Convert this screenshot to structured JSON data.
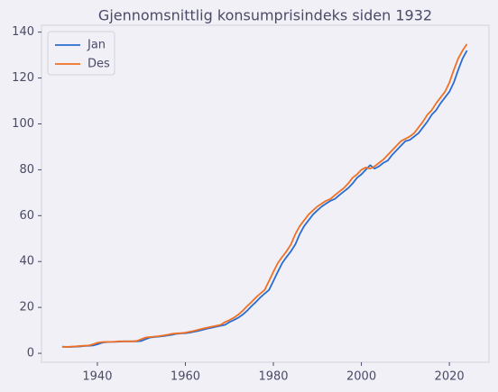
{
  "chart_data": {
    "type": "line",
    "title": "Gjennomsnittlig konsumprisindeks siden 1932",
    "x": [
      1932,
      1933,
      1934,
      1935,
      1936,
      1937,
      1938,
      1939,
      1940,
      1941,
      1942,
      1943,
      1944,
      1945,
      1946,
      1947,
      1948,
      1949,
      1950,
      1951,
      1952,
      1953,
      1954,
      1955,
      1956,
      1957,
      1958,
      1959,
      1960,
      1961,
      1962,
      1963,
      1964,
      1965,
      1966,
      1967,
      1968,
      1969,
      1970,
      1971,
      1972,
      1973,
      1974,
      1975,
      1976,
      1977,
      1978,
      1979,
      1980,
      1981,
      1982,
      1983,
      1984,
      1985,
      1986,
      1987,
      1988,
      1989,
      1990,
      1991,
      1992,
      1993,
      1994,
      1995,
      1996,
      1997,
      1998,
      1999,
      2000,
      2001,
      2002,
      2003,
      2004,
      2005,
      2006,
      2007,
      2008,
      2009,
      2010,
      2011,
      2012,
      2013,
      2014,
      2015,
      2016,
      2017,
      2018,
      2019,
      2020,
      2021,
      2022,
      2023,
      2024
    ],
    "series": [
      {
        "name": "Jan",
        "color": "#2b6cd0",
        "values": [
          2.9,
          2.8,
          2.8,
          2.9,
          3.0,
          3.2,
          3.3,
          3.4,
          3.9,
          4.6,
          4.9,
          5.0,
          5.0,
          5.1,
          5.2,
          5.2,
          5.2,
          5.2,
          5.4,
          6.2,
          6.9,
          7.1,
          7.3,
          7.5,
          7.8,
          8.1,
          8.5,
          8.7,
          8.8,
          9.0,
          9.4,
          9.8,
          10.3,
          10.8,
          11.2,
          11.6,
          12.0,
          12.4,
          13.6,
          14.5,
          15.5,
          16.8,
          18.5,
          20.5,
          22.3,
          24.3,
          26.0,
          27.6,
          31.5,
          35.5,
          39.3,
          42.0,
          44.5,
          47.5,
          52.0,
          55.5,
          58.0,
          60.5,
          62.3,
          64.0,
          65.3,
          66.5,
          67.3,
          69.0,
          70.5,
          72.0,
          74.0,
          76.5,
          78.0,
          80.0,
          82.0,
          80.5,
          81.5,
          83.0,
          84.0,
          86.5,
          88.5,
          90.5,
          92.5,
          93.0,
          94.5,
          96.0,
          98.5,
          101.0,
          104.0,
          106.0,
          109.0,
          111.5,
          114.0,
          118.0,
          123.5,
          128.5,
          132.0
        ]
      },
      {
        "name": "Des",
        "color": "#f07024",
        "values": [
          2.8,
          2.8,
          2.9,
          3.0,
          3.2,
          3.3,
          3.4,
          3.9,
          4.6,
          4.9,
          5.0,
          5.0,
          5.1,
          5.2,
          5.2,
          5.2,
          5.2,
          5.4,
          6.2,
          6.9,
          7.1,
          7.3,
          7.5,
          7.8,
          8.1,
          8.5,
          8.7,
          8.8,
          9.0,
          9.4,
          9.8,
          10.3,
          10.8,
          11.2,
          11.6,
          12.0,
          12.4,
          13.6,
          14.5,
          15.5,
          16.8,
          18.5,
          20.5,
          22.3,
          24.3,
          26.0,
          27.6,
          31.5,
          35.5,
          39.3,
          42.0,
          44.5,
          47.5,
          52.0,
          55.5,
          58.0,
          60.5,
          62.3,
          64.0,
          65.3,
          66.5,
          67.3,
          69.0,
          70.5,
          72.0,
          74.0,
          76.5,
          78.0,
          80.0,
          81.0,
          80.5,
          81.5,
          83.0,
          84.5,
          86.5,
          88.5,
          90.5,
          92.5,
          93.5,
          94.5,
          96.0,
          98.5,
          101.0,
          104.0,
          106.0,
          109.0,
          111.5,
          114.0,
          118.0,
          123.5,
          128.5,
          132.0,
          134.8
        ]
      }
    ],
    "xlim": [
      1927.3,
      2029
    ],
    "xticks": [
      1940,
      1960,
      1980,
      2000,
      2020
    ],
    "ylim": [
      -3.9,
      143
    ],
    "yticks": [
      0,
      20,
      40,
      60,
      80,
      100,
      120,
      140
    ],
    "legend": "upper left"
  }
}
